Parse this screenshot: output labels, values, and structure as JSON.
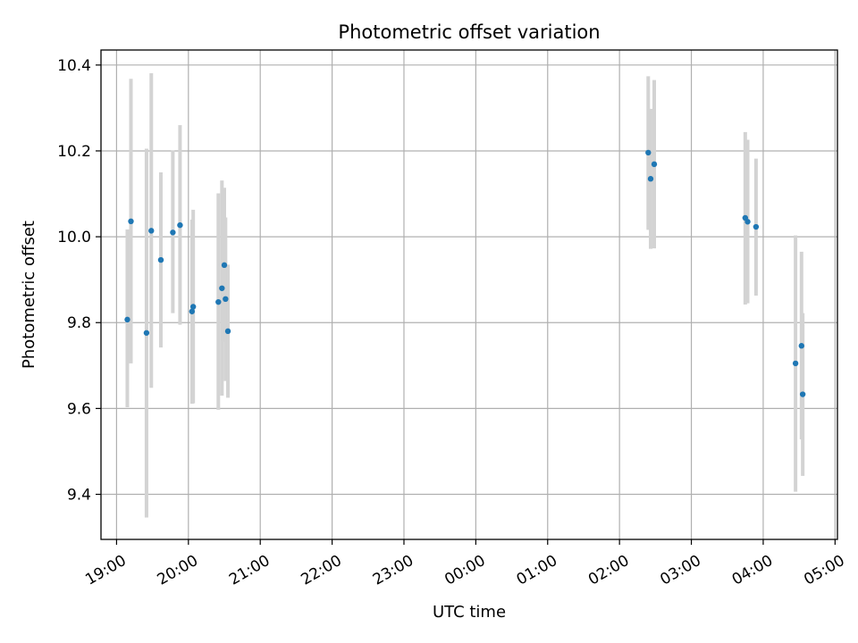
{
  "chart_data": {
    "type": "scatter",
    "title": "Photometric offset variation",
    "xlabel": "UTC time",
    "ylabel": "Photometric offset",
    "x_tick_labels": [
      "19:00",
      "20:00",
      "21:00",
      "22:00",
      "23:00",
      "00:00",
      "01:00",
      "02:00",
      "03:00",
      "04:00",
      "05:00"
    ],
    "y_tick_labels": [
      "9.4",
      "9.6",
      "9.8",
      "10.0",
      "10.2",
      "10.4"
    ],
    "y_ticks": [
      9.4,
      9.6,
      9.8,
      10.0,
      10.2,
      10.4
    ],
    "xlim": [
      "18:47",
      "05:02"
    ],
    "ylim": [
      9.295,
      10.435
    ],
    "grid": true,
    "colors": {
      "marker": "#1f77b4",
      "errorbar": "#d3d3d3",
      "grid": "#b0b0b0"
    },
    "series": [
      {
        "points": [
          {
            "x": "19:09",
            "y": 9.807,
            "ylow": 9.603,
            "yhigh": 10.017
          },
          {
            "x": "19:12",
            "y": 10.036,
            "ylow": 9.705,
            "yhigh": 10.368
          },
          {
            "x": "19:25",
            "y": 9.776,
            "ylow": 9.346,
            "yhigh": 10.205
          },
          {
            "x": "19:29",
            "y": 10.014,
            "ylow": 9.648,
            "yhigh": 10.381
          },
          {
            "x": "19:37",
            "y": 9.946,
            "ylow": 9.742,
            "yhigh": 10.15
          },
          {
            "x": "19:47",
            "y": 10.01,
            "ylow": 9.822,
            "yhigh": 10.201
          },
          {
            "x": "19:53",
            "y": 10.027,
            "ylow": 9.795,
            "yhigh": 10.26
          },
          {
            "x": "20:03",
            "y": 9.826,
            "ylow": 9.611,
            "yhigh": 10.04
          },
          {
            "x": "20:04",
            "y": 9.837,
            "ylow": 9.612,
            "yhigh": 10.063
          },
          {
            "x": "20:25",
            "y": 9.848,
            "ylow": 9.597,
            "yhigh": 10.101
          },
          {
            "x": "20:28",
            "y": 9.88,
            "ylow": 9.63,
            "yhigh": 10.131
          },
          {
            "x": "20:30",
            "y": 9.934,
            "ylow": 9.755,
            "yhigh": 10.114
          },
          {
            "x": "20:31",
            "y": 9.855,
            "ylow": 9.664,
            "yhigh": 10.045
          },
          {
            "x": "20:33",
            "y": 9.78,
            "ylow": 9.625,
            "yhigh": 9.935
          },
          {
            "x": "02:24",
            "y": 10.196,
            "ylow": 10.016,
            "yhigh": 10.374
          },
          {
            "x": "02:26",
            "y": 10.135,
            "ylow": 9.972,
            "yhigh": 10.298
          },
          {
            "x": "02:29",
            "y": 10.169,
            "ylow": 9.973,
            "yhigh": 10.365
          },
          {
            "x": "03:45",
            "y": 10.044,
            "ylow": 9.842,
            "yhigh": 10.244
          },
          {
            "x": "03:47",
            "y": 10.035,
            "ylow": 9.845,
            "yhigh": 10.226
          },
          {
            "x": "03:54",
            "y": 10.023,
            "ylow": 9.863,
            "yhigh": 10.182
          },
          {
            "x": "04:27",
            "y": 9.705,
            "ylow": 9.406,
            "yhigh": 10.003
          },
          {
            "x": "04:32",
            "y": 9.746,
            "ylow": 9.528,
            "yhigh": 9.965
          },
          {
            "x": "04:33",
            "y": 9.633,
            "ylow": 9.443,
            "yhigh": 9.822
          }
        ]
      }
    ]
  }
}
